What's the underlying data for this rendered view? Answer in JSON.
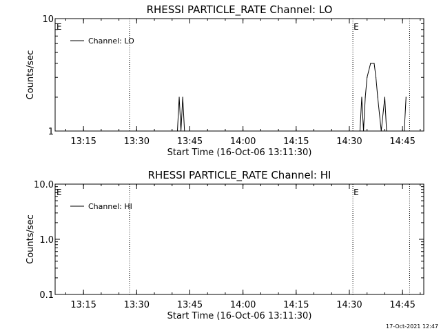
{
  "footer_timestamp": "17-Oct-2021 12:47",
  "chart_data": [
    {
      "type": "line",
      "title": "RHESSI PARTICLE_RATE Channel: LO",
      "xlabel": "Start Time (16-Oct-06 13:11:30)",
      "ylabel": "Counts/sec",
      "yscale": "log",
      "ylim": [
        1,
        10
      ],
      "xlim": [
        "13:07",
        "14:51"
      ],
      "x_ticks": [
        "13:15",
        "13:30",
        "13:45",
        "14:00",
        "14:15",
        "14:30",
        "14:45"
      ],
      "y_ticks": [
        "1",
        "10"
      ],
      "legend": {
        "entries": [
          "Channel: LO"
        ],
        "location": "top-left"
      },
      "vertical_markers": [
        {
          "time": "13:28",
          "label": ""
        },
        {
          "time": "14:31",
          "label": "E"
        },
        {
          "time": "14:47",
          "label": ""
        }
      ],
      "left_edge_marker_label": "E",
      "series": [
        {
          "name": "Channel: LO",
          "points": [
            [
              "13:41:30",
              1
            ],
            [
              "13:42",
              2
            ],
            [
              "13:42:30",
              1
            ],
            [
              "13:43",
              2
            ],
            [
              "13:43:30",
              1
            ],
            [
              "14:33",
              1
            ],
            [
              "14:33:30",
              2
            ],
            [
              "14:34",
              1
            ],
            [
              "14:34:30",
              2
            ],
            [
              "14:35",
              3
            ],
            [
              "14:36",
              4
            ],
            [
              "14:37",
              4
            ],
            [
              "14:37:30",
              3
            ],
            [
              "14:38",
              2
            ],
            [
              "14:39",
              1
            ],
            [
              "14:40",
              2
            ],
            [
              "14:40:30",
              1
            ],
            [
              "14:45:30",
              1
            ],
            [
              "14:46",
              2
            ]
          ]
        }
      ]
    },
    {
      "type": "line",
      "title": "RHESSI PARTICLE_RATE Channel: HI",
      "xlabel": "Start Time (16-Oct-06 13:11:30)",
      "ylabel": "Counts/sec",
      "yscale": "log",
      "ylim": [
        0.1,
        10
      ],
      "xlim": [
        "13:07",
        "14:51"
      ],
      "x_ticks": [
        "13:15",
        "13:30",
        "13:45",
        "14:00",
        "14:15",
        "14:30",
        "14:45"
      ],
      "y_ticks": [
        "0.1",
        "1.0",
        "10.0"
      ],
      "legend": {
        "entries": [
          "Channel: HI"
        ],
        "location": "top-left"
      },
      "vertical_markers": [
        {
          "time": "13:28",
          "label": ""
        },
        {
          "time": "14:31",
          "label": "E"
        },
        {
          "time": "14:47",
          "label": ""
        }
      ],
      "left_edge_marker_label": "E",
      "series": [
        {
          "name": "Channel: HI",
          "points": []
        }
      ]
    }
  ]
}
